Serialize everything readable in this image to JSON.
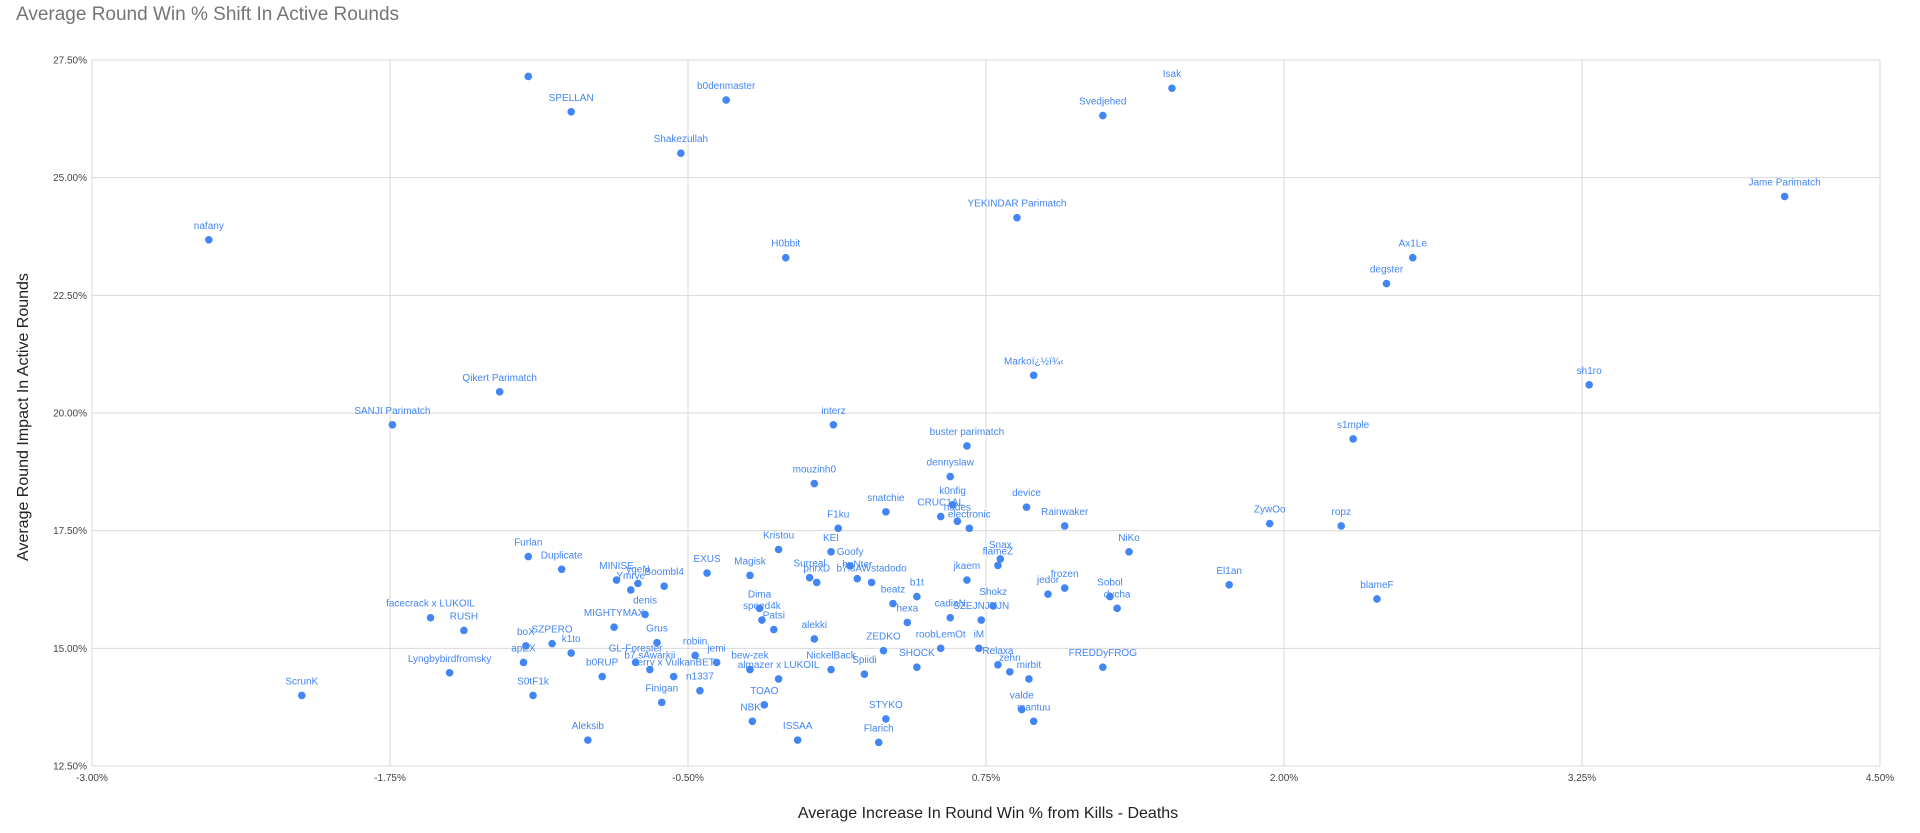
{
  "chart_data": {
    "type": "scatter",
    "title": "Average Round Win % Shift In Active Rounds",
    "xlabel": "Average Increase In Round Win % from Kills - Deaths",
    "ylabel": "Average Round Impact In Active Rounds",
    "xlim": [
      -0.03,
      0.045
    ],
    "ylim": [
      0.125,
      0.275
    ],
    "x_ticks": [
      -0.03,
      -0.0175,
      -0.005,
      0.0075,
      0.02,
      0.0325,
      0.045
    ],
    "x_tick_labels": [
      "-3.00%",
      "-1.75%",
      "-0.50%",
      "0.75%",
      "2.00%",
      "3.25%",
      "4.50%"
    ],
    "y_ticks": [
      0.125,
      0.15,
      0.175,
      0.2,
      0.225,
      0.25,
      0.275
    ],
    "y_tick_labels": [
      "12.50%",
      "15.00%",
      "17.50%",
      "20.00%",
      "22.50%",
      "25.00%",
      "27.50%"
    ],
    "grid": true,
    "marker_color": "#4285f4",
    "points": [
      {
        "label": "",
        "x": -0.0117,
        "y": 0.2715
      },
      {
        "label": "SPELLAN",
        "x": -0.0099,
        "y": 0.264
      },
      {
        "label": "b0denmaster",
        "x": -0.0034,
        "y": 0.2665
      },
      {
        "label": "Shakezullah",
        "x": -0.0053,
        "y": 0.2552
      },
      {
        "label": "Isak",
        "x": 0.0153,
        "y": 0.269
      },
      {
        "label": "Svedjehed",
        "x": 0.0124,
        "y": 0.2632
      },
      {
        "label": "Jame Parimatch",
        "x": 0.041,
        "y": 0.246
      },
      {
        "label": "YEKINDAR Parimatch",
        "x": 0.0088,
        "y": 0.2415
      },
      {
        "label": "nafany",
        "x": -0.0251,
        "y": 0.2368
      },
      {
        "label": "H0bbit",
        "x": -0.0009,
        "y": 0.233
      },
      {
        "label": "Ax1Le",
        "x": 0.0254,
        "y": 0.233
      },
      {
        "label": "degster",
        "x": 0.0243,
        "y": 0.2275
      },
      {
        "label": "Qikert Parimatch",
        "x": -0.0129,
        "y": 0.2045
      },
      {
        "label": "SANJI Parimatch",
        "x": -0.0174,
        "y": 0.1975
      },
      {
        "label": "Markoï¿½ï¾‹",
        "x": 0.0095,
        "y": 0.208
      },
      {
        "label": "sh1ro",
        "x": 0.0328,
        "y": 0.206
      },
      {
        "label": "interz",
        "x": 0.0011,
        "y": 0.1975
      },
      {
        "label": "buster parimatch",
        "x": 0.0067,
        "y": 0.193
      },
      {
        "label": "s1mple",
        "x": 0.0229,
        "y": 0.1945
      },
      {
        "label": "dennyslaw",
        "x": 0.006,
        "y": 0.1865
      },
      {
        "label": "mouzinh0",
        "x": 0.0003,
        "y": 0.185
      },
      {
        "label": "device",
        "x": 0.0092,
        "y": 0.18
      },
      {
        "label": "snatchie",
        "x": 0.0033,
        "y": 0.179
      },
      {
        "label": "k0nfig",
        "x": 0.0061,
        "y": 0.1805
      },
      {
        "label": "CRUC1AL",
        "x": 0.0056,
        "y": 0.178
      },
      {
        "label": "nades",
        "x": 0.0063,
        "y": 0.177
      },
      {
        "label": "Rainwaker",
        "x": 0.0108,
        "y": 0.176
      },
      {
        "label": "ZywOo",
        "x": 0.0194,
        "y": 0.1765
      },
      {
        "label": "ropz",
        "x": 0.0224,
        "y": 0.176
      },
      {
        "label": "F1ku",
        "x": 0.0013,
        "y": 0.1755
      },
      {
        "label": "electronic",
        "x": 0.0068,
        "y": 0.1755
      },
      {
        "label": "Kristou",
        "x": -0.0012,
        "y": 0.171
      },
      {
        "label": "KEI",
        "x": 0.001,
        "y": 0.1705
      },
      {
        "label": "Goofy",
        "x": 0.0018,
        "y": 0.1675
      },
      {
        "label": "NiKo",
        "x": 0.0135,
        "y": 0.1705
      },
      {
        "label": "Snax",
        "x": 0.0081,
        "y": 0.169
      },
      {
        "label": "Furlan",
        "x": -0.0117,
        "y": 0.1695
      },
      {
        "label": "Duplicate",
        "x": -0.0103,
        "y": 0.1668
      },
      {
        "label": "MINISE",
        "x": -0.008,
        "y": 0.1645
      },
      {
        "label": "ygeN",
        "x": -0.0071,
        "y": 0.1638
      },
      {
        "label": "Boombl4",
        "x": -0.006,
        "y": 0.1632
      },
      {
        "label": "Ymrve",
        "x": -0.0074,
        "y": 0.1624
      },
      {
        "label": "EXUS",
        "x": -0.0042,
        "y": 0.166
      },
      {
        "label": "Magisk",
        "x": -0.0024,
        "y": 0.1655
      },
      {
        "label": "Surreal",
        "x": 0.0001,
        "y": 0.165
      },
      {
        "label": "phrxD",
        "x": 0.0004,
        "y": 0.164
      },
      {
        "label": "huNter",
        "x": 0.0021,
        "y": 0.1648
      },
      {
        "label": "b7.sAWstadodo",
        "x": 0.0027,
        "y": 0.164
      },
      {
        "label": "jkaem",
        "x": 0.0067,
        "y": 0.1645
      },
      {
        "label": "flameZ",
        "x": 0.008,
        "y": 0.1676
      },
      {
        "label": "frozen",
        "x": 0.0108,
        "y": 0.1628
      },
      {
        "label": "El1an",
        "x": 0.0177,
        "y": 0.1635
      },
      {
        "label": "blameF",
        "x": 0.0239,
        "y": 0.1605
      },
      {
        "label": "Sobol",
        "x": 0.0127,
        "y": 0.161
      },
      {
        "label": "dycha",
        "x": 0.013,
        "y": 0.1585
      },
      {
        "label": "facecrack x LUKOIL",
        "x": -0.0158,
        "y": 0.1565
      },
      {
        "label": "RUSH",
        "x": -0.0144,
        "y": 0.1538
      },
      {
        "label": "boX",
        "x": -0.0118,
        "y": 0.1505
      },
      {
        "label": "apEX",
        "x": -0.0119,
        "y": 0.147
      },
      {
        "label": "SZPERO",
        "x": -0.0107,
        "y": 0.151
      },
      {
        "label": "k1to",
        "x": -0.0099,
        "y": 0.149
      },
      {
        "label": "MIGHTYMAX",
        "x": -0.0081,
        "y": 0.1545
      },
      {
        "label": "denis",
        "x": -0.0068,
        "y": 0.1572
      },
      {
        "label": "Grus",
        "x": -0.0063,
        "y": 0.1512
      },
      {
        "label": "robiin",
        "x": -0.0047,
        "y": 0.1485
      },
      {
        "label": "Dima",
        "x": -0.002,
        "y": 0.1585
      },
      {
        "label": "speed4k",
        "x": -0.0019,
        "y": 0.156
      },
      {
        "label": "Patsi",
        "x": -0.0014,
        "y": 0.154
      },
      {
        "label": "alekki",
        "x": 0.0003,
        "y": 0.152
      },
      {
        "label": "Lyngbybirdfromsky",
        "x": -0.015,
        "y": 0.1448
      },
      {
        "label": "S0tF1k",
        "x": -0.0115,
        "y": 0.14
      },
      {
        "label": "b0RUP",
        "x": -0.0086,
        "y": 0.144
      },
      {
        "label": "GL-Forester",
        "x": -0.0072,
        "y": 0.147
      },
      {
        "label": "b7.sAwarkii",
        "x": -0.0066,
        "y": 0.1455
      },
      {
        "label": "Jerry x VulkanBET",
        "x": -0.0056,
        "y": 0.144
      },
      {
        "label": "Finigan",
        "x": -0.0061,
        "y": 0.1385
      },
      {
        "label": "n1337",
        "x": -0.0045,
        "y": 0.141
      },
      {
        "label": "jemi",
        "x": -0.0038,
        "y": 0.147
      },
      {
        "label": "bew-zek",
        "x": -0.0024,
        "y": 0.1455
      },
      {
        "label": "almazer x LUKOIL",
        "x": -0.0012,
        "y": 0.1435
      },
      {
        "label": "TOAO",
        "x": -0.0018,
        "y": 0.138
      },
      {
        "label": "NBK-",
        "x": -0.0023,
        "y": 0.1345
      },
      {
        "label": "ISSAA",
        "x": -0.0004,
        "y": 0.1305
      },
      {
        "label": "Aleksib",
        "x": -0.0092,
        "y": 0.1305
      },
      {
        "label": "ScrunK",
        "x": -0.0212,
        "y": 0.14
      },
      {
        "label": "STYKO",
        "x": 0.0033,
        "y": 0.135
      },
      {
        "label": "Flarich",
        "x": 0.003,
        "y": 0.13
      },
      {
        "label": "ZEDKO",
        "x": 0.0032,
        "y": 0.1495
      },
      {
        "label": "SHOCK",
        "x": 0.0046,
        "y": 0.146
      },
      {
        "label": "Spiidi",
        "x": 0.0024,
        "y": 0.1445
      },
      {
        "label": "NickelBack",
        "x": 0.001,
        "y": 0.1455
      },
      {
        "label": "FREDDyFROG",
        "x": 0.0124,
        "y": 0.146
      },
      {
        "label": "Relaxa",
        "x": 0.008,
        "y": 0.1465
      },
      {
        "label": "zehn",
        "x": 0.0085,
        "y": 0.145
      },
      {
        "label": "mirbit",
        "x": 0.0093,
        "y": 0.1435
      },
      {
        "label": "valde",
        "x": 0.009,
        "y": 0.137
      },
      {
        "label": "mantuu",
        "x": 0.0095,
        "y": 0.1345
      },
      {
        "label": "SZEJNJNJN",
        "x": 0.0073,
        "y": 0.156
      },
      {
        "label": "iM",
        "x": 0.0072,
        "y": 0.15
      },
      {
        "label": "cadiaN",
        "x": 0.006,
        "y": 0.1565
      },
      {
        "label": "hexa",
        "x": 0.0042,
        "y": 0.1555
      },
      {
        "label": "beatz",
        "x": 0.0036,
        "y": 0.1595
      },
      {
        "label": "Shokz",
        "x": 0.0078,
        "y": 0.159
      },
      {
        "label": "jedor",
        "x": 0.0101,
        "y": 0.1615
      },
      {
        "label": "b1t",
        "x": 0.0046,
        "y": 0.161
      },
      {
        "label": "roobLemOt",
        "x": 0.0056,
        "y": 0.15
      }
    ]
  }
}
